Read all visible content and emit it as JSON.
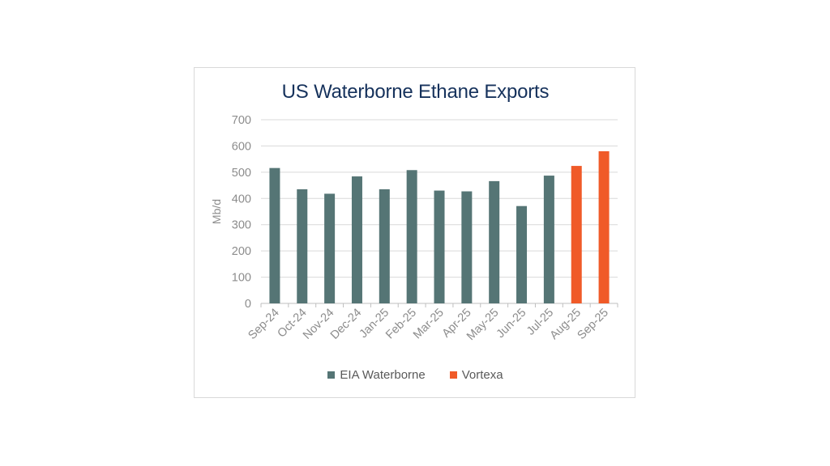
{
  "chart_data": {
    "type": "bar",
    "title": "US Waterborne Ethane Exports",
    "ylabel": "Mb/d",
    "xlabel": "",
    "ylim": [
      0,
      700
    ],
    "yticks": [
      0,
      100,
      200,
      300,
      400,
      500,
      600,
      700
    ],
    "grid": true,
    "legend_position": "bottom",
    "categories": [
      "Sep-24",
      "Oct-24",
      "Nov-24",
      "Dec-24",
      "Jan-25",
      "Feb-25",
      "Mar-25",
      "Apr-25",
      "May-25",
      "Jun-25",
      "Jul-25",
      "Aug-25",
      "Sep-25"
    ],
    "series": [
      {
        "name": "EIA Waterborne",
        "color": "#557575",
        "values": [
          516,
          435,
          418,
          484,
          435,
          508,
          430,
          427,
          466,
          371,
          487,
          null,
          null
        ]
      },
      {
        "name": "Vortexa",
        "color": "#f05a28",
        "values": [
          null,
          null,
          null,
          null,
          null,
          null,
          null,
          null,
          null,
          null,
          null,
          524,
          580
        ]
      }
    ]
  }
}
